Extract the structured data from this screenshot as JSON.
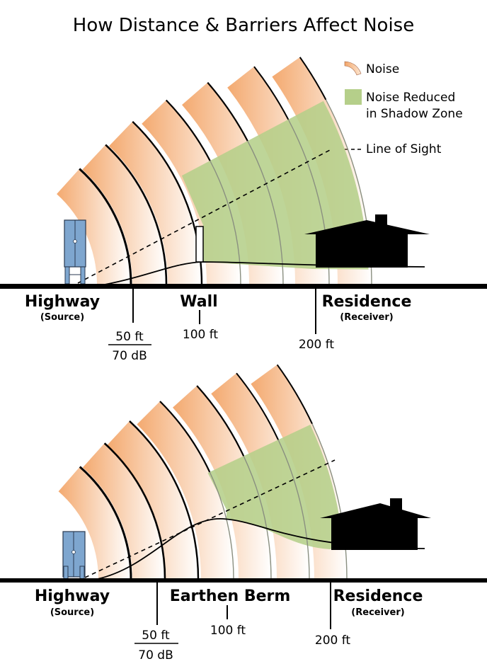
{
  "title": "How Distance & Barriers Affect Noise",
  "legend": {
    "noise": "Noise",
    "reduced_line1": "Noise Reduced",
    "reduced_line2": "in Shadow Zone",
    "line_of_sight": "Line of Sight",
    "colors": {
      "noise": "#f3a568",
      "shadow": "#b5cf8a",
      "source": "#7ea6cf"
    }
  },
  "panels": [
    {
      "source_label": "Highway",
      "source_sub": "(Source)",
      "barrier_label": "Wall",
      "receiver_label": "Residence",
      "receiver_sub": "(Receiver)",
      "tick1_top": "50 ft",
      "tick1_bottom": "70 dB",
      "tick2": "100 ft",
      "tick3": "200 ft"
    },
    {
      "source_label": "Highway",
      "source_sub": "(Source)",
      "barrier_label": "Earthen Berm",
      "receiver_label": "Residence",
      "receiver_sub": "(Receiver)",
      "tick1_top": "50 ft",
      "tick1_bottom": "70 dB",
      "tick2": "100 ft",
      "tick3": "200 ft"
    }
  ]
}
